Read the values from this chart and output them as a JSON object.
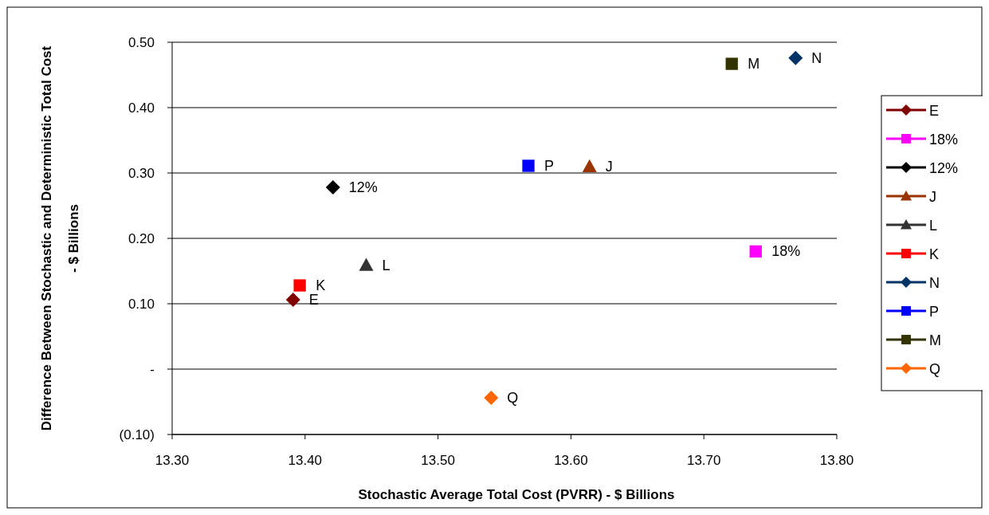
{
  "chart_data": {
    "type": "scatter",
    "xlabel": "Stochastic Average Total Cost (PVRR) - $ Billions",
    "ylabel": "Difference Between Stochastic and Deterministic Total Cost - $ Billions",
    "xlim": [
      13.3,
      13.8
    ],
    "xticks": [
      {
        "value": 13.3,
        "label": "13.30"
      },
      {
        "value": 13.4,
        "label": "13.40"
      },
      {
        "value": 13.5,
        "label": "13.50"
      },
      {
        "value": 13.6,
        "label": "13.60"
      },
      {
        "value": 13.7,
        "label": "13.70"
      },
      {
        "value": 13.8,
        "label": "13.80"
      }
    ],
    "ylim": [
      -0.1,
      0.5
    ],
    "yticks": [
      {
        "value": -0.1,
        "label": "(0.10)"
      },
      {
        "value": 0,
        "label": "-"
      },
      {
        "value": 0.1,
        "label": "0.10"
      },
      {
        "value": 0.2,
        "label": "0.20"
      },
      {
        "value": 0.3,
        "label": "0.30"
      },
      {
        "value": 0.4,
        "label": "0.40"
      },
      {
        "value": 0.5,
        "label": "0.50"
      }
    ],
    "grid": "y",
    "legend": "right",
    "series": [
      {
        "name": "E",
        "color": "#800000",
        "marker": "diamond",
        "x": [
          13.391
        ],
        "values": [
          0.106
        ]
      },
      {
        "name": "18%",
        "color": "#ff00ff",
        "marker": "square",
        "x": [
          13.739
        ],
        "values": [
          0.18
        ]
      },
      {
        "name": "12%",
        "color": "#000000",
        "marker": "diamond",
        "x": [
          13.421
        ],
        "values": [
          0.278
        ]
      },
      {
        "name": "J",
        "color": "#993300",
        "marker": "triangle",
        "x": [
          13.614
        ],
        "values": [
          0.31
        ]
      },
      {
        "name": "L",
        "color": "#333333",
        "marker": "triangle",
        "x": [
          13.446
        ],
        "values": [
          0.159
        ]
      },
      {
        "name": "K",
        "color": "#ff0000",
        "marker": "square",
        "x": [
          13.396
        ],
        "values": [
          0.128
        ]
      },
      {
        "name": "N",
        "color": "#003366",
        "marker": "diamond",
        "x": [
          13.769
        ],
        "values": [
          0.476
        ]
      },
      {
        "name": "P",
        "color": "#0000ff",
        "marker": "square",
        "x": [
          13.568
        ],
        "values": [
          0.311
        ]
      },
      {
        "name": "M",
        "color": "#333300",
        "marker": "square",
        "x": [
          13.721
        ],
        "values": [
          0.467
        ]
      },
      {
        "name": "Q",
        "color": "#ff6600",
        "marker": "diamond",
        "x": [
          13.54
        ],
        "values": [
          -0.044
        ]
      }
    ]
  }
}
